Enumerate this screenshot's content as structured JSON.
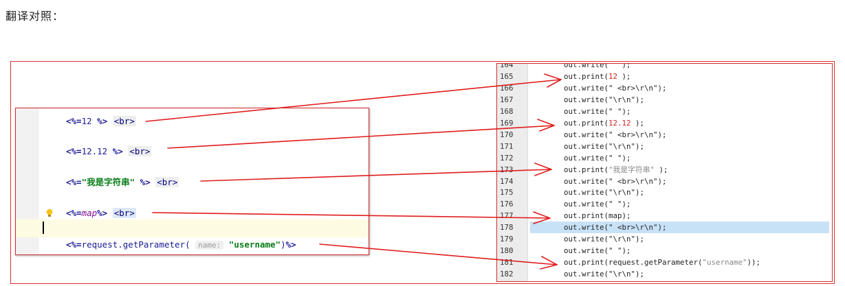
{
  "caption": "翻译对照：",
  "jsp": {
    "lines": [
      {
        "open": "<%=",
        "expr": "12",
        "close": " %>",
        "tag": "<br>"
      },
      {
        "open": "<%=",
        "expr": "12.12",
        "close": " %>",
        "tag": "<br>"
      },
      {
        "open": "<%=",
        "expr": "\"我是字符串\"",
        "close": " %>",
        "tag": "<br>"
      },
      {
        "open": "<%=",
        "expr": "map",
        "close": "%>",
        "tag": "<br>"
      },
      {
        "open": "<%=",
        "call": "request.getParameter(",
        "hint": "name:",
        "arg": "\"username\"",
        "end": ")",
        "close": "%>"
      }
    ]
  },
  "java": {
    "lines": [
      {
        "num": "164",
        "a": "out.write(\"",
        "b": "    \");"
      },
      {
        "num": "165",
        "a": "out.print(",
        "n": "12",
        "b": " );"
      },
      {
        "num": "166",
        "a": "out.write(\" <br>\\r\\n\");"
      },
      {
        "num": "167",
        "a": "out.write(\"\\r\\n\");"
      },
      {
        "num": "168",
        "a": "out.write(\"    \");"
      },
      {
        "num": "169",
        "a": "out.print(",
        "n": "12.12",
        "b": " );"
      },
      {
        "num": "170",
        "a": "out.write(\" <br>\\r\\n\");"
      },
      {
        "num": "171",
        "a": "out.write(\"\\r\\n\");"
      },
      {
        "num": "172",
        "a": "out.write(\"    \");"
      },
      {
        "num": "173",
        "a": "out.print(",
        "s": "\"我是字符串\"",
        "b": " );"
      },
      {
        "num": "174",
        "a": "out.write(\" <br>\\r\\n\");"
      },
      {
        "num": "175",
        "a": "out.write(\"\\r\\n\");"
      },
      {
        "num": "176",
        "a": "out.write(\"    \");"
      },
      {
        "num": "177",
        "a": "out.print(map);"
      },
      {
        "num": "178",
        "a": "out.write(\" <br>\\r\\n\");"
      },
      {
        "num": "179",
        "a": "out.write(\"\\r\\n\");"
      },
      {
        "num": "180",
        "a": "out.write(\"    \");"
      },
      {
        "num": "181",
        "a": "out.print(request.getParameter(",
        "s": "\"username\"",
        "b": "));"
      },
      {
        "num": "182",
        "a": "out.write(\"\\r\\n\");"
      }
    ],
    "highlighted_line": "178"
  },
  "colors": {
    "frame": "#e03030",
    "arrow": "#e01b1b",
    "highlight": "#c7e1f7"
  }
}
